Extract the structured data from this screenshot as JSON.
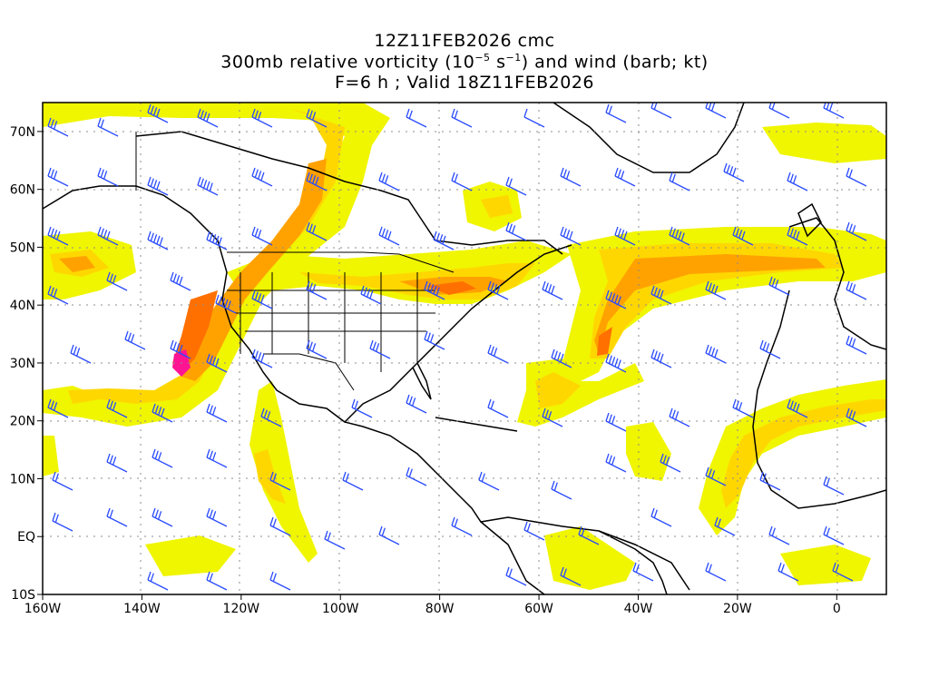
{
  "header": {
    "run": "12Z11FEB2026 cmc",
    "field_prefix": "300mb relative vorticity (10",
    "field_exp1": "−5",
    "field_mid": " s",
    "field_exp2": "−1",
    "field_suffix": ") and wind (barb; kt)",
    "valid": "F=6 h ; Valid 18Z11FEB2026"
  },
  "map": {
    "lon_range": [
      -160,
      10
    ],
    "lat_range": [
      -10,
      75
    ],
    "lon_ticks": [
      {
        "value": -160,
        "label": "160W"
      },
      {
        "value": -140,
        "label": "140W"
      },
      {
        "value": -120,
        "label": "120W"
      },
      {
        "value": -100,
        "label": "100W"
      },
      {
        "value": -80,
        "label": "80W"
      },
      {
        "value": -60,
        "label": "60W"
      },
      {
        "value": -40,
        "label": "40W"
      },
      {
        "value": -20,
        "label": "20W"
      },
      {
        "value": 0,
        "label": "0"
      }
    ],
    "lat_ticks": [
      {
        "value": 70,
        "label": "70N"
      },
      {
        "value": 60,
        "label": "60N"
      },
      {
        "value": 50,
        "label": "50N"
      },
      {
        "value": 40,
        "label": "40N"
      },
      {
        "value": 30,
        "label": "30N"
      },
      {
        "value": 20,
        "label": "20N"
      },
      {
        "value": 10,
        "label": "10N"
      },
      {
        "value": 0,
        "label": "EQ"
      },
      {
        "value": -10,
        "label": "10S"
      }
    ],
    "colors": {
      "vort_low": "#f0f500",
      "vort_mid": "#ffd700",
      "vort_high": "#ffa200",
      "vort_higher": "#ff7000",
      "vort_max": "#ff1493",
      "coast": "#000000",
      "barb": "#2a4bff",
      "grid": "#8c8c8c"
    }
  }
}
